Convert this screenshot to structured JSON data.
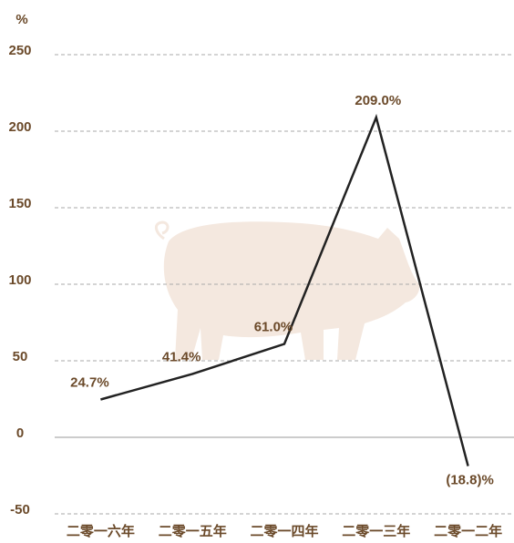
{
  "chart_data": {
    "type": "line",
    "y_label": "%",
    "categories": [
      "二零一六年",
      "二零一五年",
      "二零一四年",
      "二零一三年",
      "二零一二年"
    ],
    "values": [
      24.7,
      41.4,
      61.0,
      209.0,
      -18.8
    ],
    "value_labels": [
      "24.7%",
      "41.4%",
      "61.0%",
      "209.0%",
      "(18.8)%"
    ],
    "color": "#222222",
    "ylim": [
      -50,
      250
    ],
    "yticks": [
      -50,
      0,
      50,
      100,
      150,
      200,
      250
    ],
    "grid": true
  }
}
